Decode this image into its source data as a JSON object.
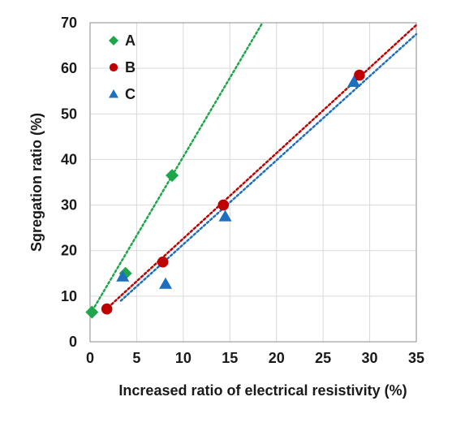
{
  "chart_data": {
    "type": "scatter",
    "xlabel": "Increased ratio of electrical resistivity (%)",
    "ylabel": "Sgregation ratio (%)",
    "xlim": [
      0,
      35
    ],
    "ylim": [
      0,
      70
    ],
    "xticks": [
      "0",
      "5",
      "10",
      "15",
      "20",
      "25",
      "30",
      "35"
    ],
    "yticks": [
      "0",
      "10",
      "20",
      "30",
      "40",
      "50",
      "60",
      "70"
    ],
    "grid": true,
    "legend_position": "top-left",
    "series": [
      {
        "name": "A",
        "marker": "diamond",
        "color": "#1fa64b",
        "points": [
          [
            0.2,
            6.5
          ],
          [
            3.8,
            15.0
          ],
          [
            8.8,
            36.5
          ]
        ],
        "trendline": {
          "x": [
            0,
            18.5
          ],
          "y": [
            6.0,
            70
          ]
        }
      },
      {
        "name": "B",
        "marker": "circle",
        "color": "#c00000",
        "points": [
          [
            1.8,
            7.2
          ],
          [
            7.8,
            17.5
          ],
          [
            14.3,
            30.0
          ],
          [
            28.9,
            58.5
          ]
        ],
        "trendline": {
          "x": [
            1.6,
            35
          ],
          "y": [
            6.9,
            69.5
          ]
        }
      },
      {
        "name": "C",
        "marker": "triangle",
        "color": "#1f6fbf",
        "points": [
          [
            3.5,
            14.3
          ],
          [
            8.1,
            12.7
          ],
          [
            14.5,
            27.5
          ],
          [
            28.3,
            57.0
          ]
        ],
        "trendline": {
          "x": [
            3.3,
            35
          ],
          "y": [
            9.0,
            67.5
          ]
        }
      }
    ]
  }
}
